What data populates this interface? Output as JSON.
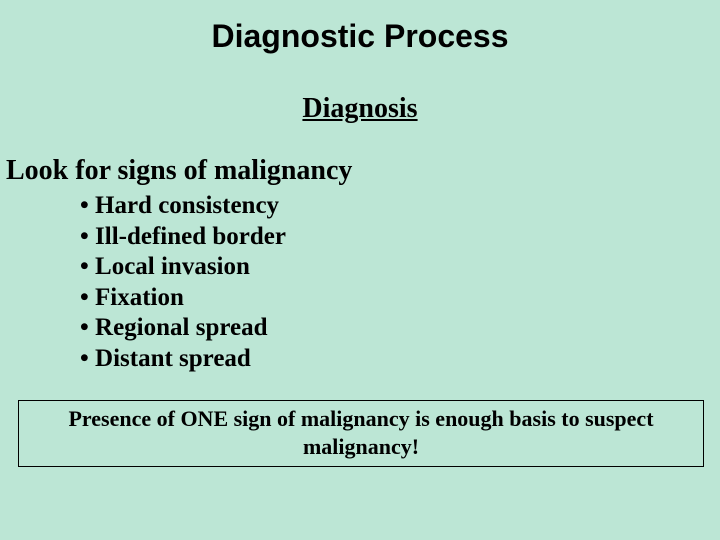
{
  "colors": {
    "background": "#bce6d5",
    "text": "#000000",
    "callout_border": "#000000"
  },
  "typography": {
    "title_font_family": "Arial, Helvetica, sans-serif",
    "body_font_family": "Times New Roman, Times, serif",
    "title_size_pt": 32,
    "subtitle_size_pt": 28,
    "heading_size_pt": 28,
    "bullet_size_pt": 25,
    "callout_size_pt": 22,
    "weight": "bold"
  },
  "title": "Diagnostic Process",
  "subtitle": "Diagnosis",
  "heading": "Look for signs of malignancy",
  "bullets": [
    "Hard consistency",
    "Ill-defined border",
    "Local invasion",
    "Fixation",
    "Regional spread",
    "Distant spread"
  ],
  "callout": "Presence of ONE sign of malignancy is enough basis to suspect malignancy!"
}
